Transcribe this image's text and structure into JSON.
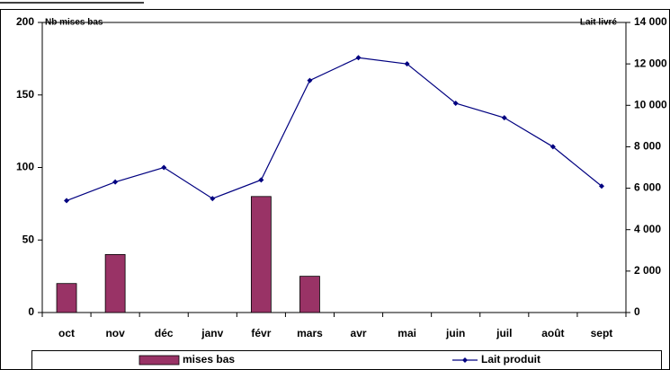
{
  "chart_data": {
    "type": "bar_line",
    "y_label": "Nb mises bas",
    "y2_label": "Lait livré",
    "categories": [
      "oct",
      "nov",
      "déc",
      "janv",
      "févr",
      "mars",
      "avr",
      "mai",
      "juin",
      "juil",
      "août",
      "sept"
    ],
    "series": [
      {
        "name": "mises bas",
        "type": "bar",
        "color": "#993366",
        "values": [
          20,
          40,
          0,
          0,
          80,
          25,
          0,
          0,
          0,
          0,
          0,
          0
        ]
      },
      {
        "name": "Lait produit",
        "type": "line",
        "axis": "y2",
        "color": "#000080",
        "values": [
          5400,
          6300,
          7000,
          5500,
          6400,
          11200,
          12300,
          12000,
          10100,
          9400,
          8000,
          6100
        ]
      }
    ],
    "ylim": [
      0,
      200
    ],
    "yticks": [
      0,
      50,
      100,
      150,
      200
    ],
    "y2lim": [
      0,
      14000
    ],
    "y2ticks": [
      0,
      {
        "value": 2000,
        "label": "2 000"
      },
      {
        "value": 4000,
        "label": "4 000"
      },
      {
        "value": 6000,
        "label": "6 000"
      },
      {
        "value": 8000,
        "label": "8 000"
      },
      {
        "value": 10000,
        "label": "10 000"
      },
      {
        "value": 12000,
        "label": "12 000"
      },
      {
        "value": 14000,
        "label": "14 000"
      }
    ],
    "legend": "bottom"
  }
}
